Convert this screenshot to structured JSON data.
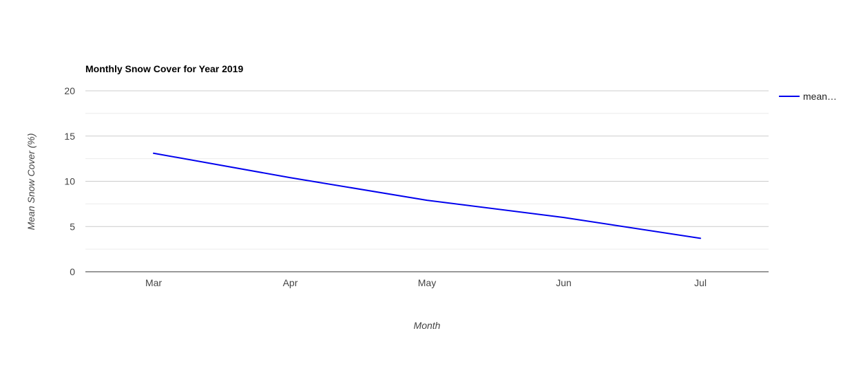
{
  "chart_data": {
    "type": "line",
    "title": "Monthly Snow Cover for Year 2019",
    "xlabel": "Month",
    "ylabel": "Mean Snow Cover (%)",
    "categories": [
      "Mar",
      "Apr",
      "May",
      "Jun",
      "Jul"
    ],
    "series": [
      {
        "name": "mean…",
        "values": [
          13.1,
          10.4,
          7.9,
          6.0,
          3.7
        ],
        "color": "#0000ee"
      }
    ],
    "ylim": [
      0,
      20
    ],
    "yticks": [
      0,
      5,
      10,
      15,
      20
    ],
    "minor_gridlines": true,
    "legend_position": "right"
  }
}
